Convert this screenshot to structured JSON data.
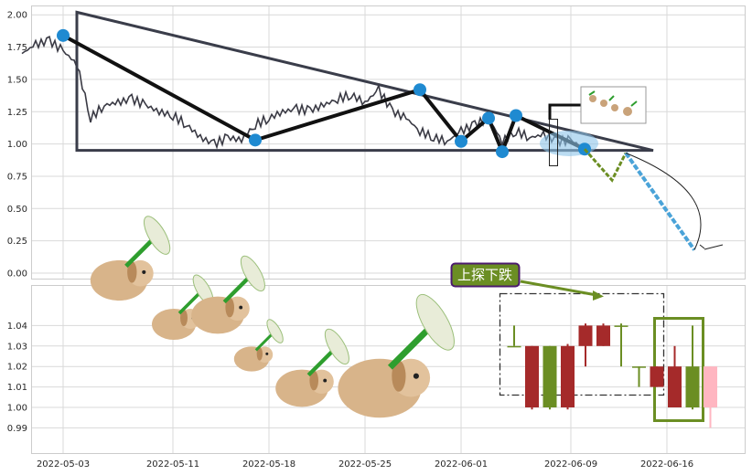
{
  "chart_data": [
    {
      "panel": "upper",
      "type": "line",
      "ylim": [
        -0.04,
        2.05
      ],
      "grid": true,
      "yticks": [
        "0.00",
        "0.25",
        "0.50",
        "0.75",
        "1.00",
        "1.25",
        "1.50",
        "1.75",
        "2.00"
      ],
      "price_line": {
        "x": [
          "2022-04-30",
          "2022-05-01",
          "2022-05-02",
          "2022-05-03",
          "2022-05-04",
          "2022-05-05",
          "2022-05-06",
          "2022-05-07",
          "2022-05-08",
          "2022-05-09",
          "2022-05-10",
          "2022-05-11",
          "2022-05-12",
          "2022-05-13",
          "2022-05-14",
          "2022-05-15",
          "2022-05-16",
          "2022-05-17",
          "2022-05-18",
          "2022-05-19",
          "2022-05-20",
          "2022-05-21",
          "2022-05-22",
          "2022-05-23",
          "2022-05-24",
          "2022-05-25",
          "2022-05-26",
          "2022-05-27",
          "2022-05-28",
          "2022-05-29",
          "2022-05-30",
          "2022-05-31",
          "2022-06-01",
          "2022-06-02",
          "2022-06-03",
          "2022-06-04",
          "2022-06-05",
          "2022-06-06",
          "2022-06-07",
          "2022-06-08",
          "2022-06-09",
          "2022-06-10"
        ],
        "y": [
          1.7,
          1.77,
          1.8,
          1.72,
          1.62,
          1.2,
          1.3,
          1.32,
          1.35,
          1.3,
          1.25,
          1.22,
          1.15,
          1.05,
          1.0,
          1.05,
          1.03,
          1.15,
          1.2,
          1.25,
          1.27,
          1.26,
          1.3,
          1.35,
          1.38,
          1.32,
          1.42,
          1.25,
          1.2,
          1.1,
          1.05,
          1.02,
          1.1,
          1.15,
          1.2,
          1.02,
          1.1,
          1.05,
          1.07,
          1.02,
          1.03,
          0.96
        ]
      },
      "pivots": [
        {
          "x": "2022-05-03",
          "y": 1.84
        },
        {
          "x": "2022-05-17",
          "y": 1.03
        },
        {
          "x": "2022-05-29",
          "y": 1.42
        },
        {
          "x": "2022-06-01",
          "y": 1.02
        },
        {
          "x": "2022-06-03",
          "y": 1.2
        },
        {
          "x": "2022-06-04",
          "y": 0.94
        },
        {
          "x": "2022-06-05",
          "y": 1.22
        },
        {
          "x": "2022-06-10",
          "y": 0.96
        }
      ],
      "triangle": [
        {
          "x": "2022-05-04",
          "y": 2.02
        },
        {
          "x": "2022-06-15",
          "y": 0.95
        },
        {
          "x": "2022-05-04",
          "y": 0.95
        }
      ],
      "forecast_zigzag": [
        {
          "x": "2022-06-10",
          "y": 0.96
        },
        {
          "x": "2022-06-12",
          "y": 0.72
        },
        {
          "x": "2022-06-13",
          "y": 0.93
        }
      ],
      "forecast_arrow": [
        {
          "x": "2022-06-13",
          "y": 0.93
        },
        {
          "x": "2022-06-18",
          "y": 0.18
        }
      ]
    },
    {
      "panel": "lower",
      "type": "candlestick",
      "ylim": [
        0.981,
        1.048
      ],
      "grid": true,
      "yticks": [
        "0.99",
        "1.00",
        "1.01",
        "1.02",
        "1.03",
        "1.04"
      ],
      "candles": [
        {
          "x": "2022-06-01",
          "open": 1.03,
          "high": 1.04,
          "low": 1.03,
          "close": 1.03
        },
        {
          "x": "2022-06-02",
          "open": 1.03,
          "high": 1.03,
          "low": 0.999,
          "close": 1.0
        },
        {
          "x": "2022-06-03",
          "open": 1.0,
          "high": 1.03,
          "low": 0.999,
          "close": 1.03
        },
        {
          "x": "2022-06-04",
          "open": 1.03,
          "high": 1.031,
          "low": 0.999,
          "close": 1.0
        },
        {
          "x": "2022-06-05",
          "open": 1.04,
          "high": 1.041,
          "low": 1.02,
          "close": 1.03
        },
        {
          "x": "2022-06-06",
          "open": 1.04,
          "high": 1.041,
          "low": 1.03,
          "close": 1.03
        },
        {
          "x": "2022-06-07",
          "open": 1.04,
          "high": 1.041,
          "low": 1.02,
          "close": 1.04
        },
        {
          "x": "2022-06-08",
          "open": 1.02,
          "high": 1.02,
          "low": 1.01,
          "close": 1.02
        },
        {
          "x": "2022-06-09",
          "open": 1.02,
          "high": 1.02,
          "low": 1.01,
          "close": 1.01
        },
        {
          "x": "2022-06-10",
          "open": 1.02,
          "high": 1.03,
          "low": 1.0,
          "close": 1.0
        },
        {
          "x": "2022-06-11",
          "open": 1.0,
          "high": 1.04,
          "low": 0.999,
          "close": 1.02
        },
        {
          "x": "2022-06-12",
          "open": 1.02,
          "high": 1.02,
          "low": 0.99,
          "close": 1.0
        }
      ],
      "annotation": "上探下跌"
    }
  ],
  "xticks": [
    "2022-05-03",
    "2022-05-11",
    "2022-05-18",
    "2022-05-25",
    "2022-06-01",
    "2022-06-09",
    "2022-06-16"
  ],
  "colors": {
    "grid": "#d9d9d9",
    "price_line": "#3a3a44",
    "pivot": "#1f8ad1",
    "triangle": "#3a3d4a",
    "up_candle": "#6b8e23",
    "down_candle": "#a52a2a",
    "last_candle": "#ffb6c1",
    "annotation_bg": "#6b8e23",
    "annotation_border": "#4b1a6e",
    "forecast_arrow": "#4aa3d8"
  }
}
